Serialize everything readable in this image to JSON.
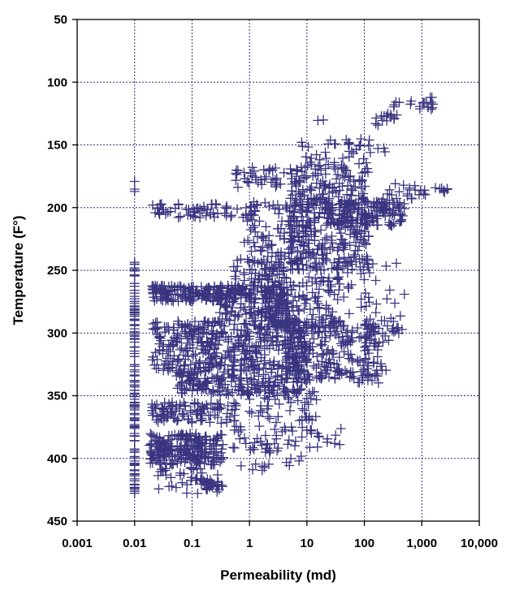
{
  "chart_data": {
    "type": "scatter",
    "title": "",
    "xlabel": "Permeability (md)",
    "ylabel": "Temperature (F°)",
    "x_scale": "log",
    "x_range": [
      0.001,
      10000
    ],
    "x_ticks": [
      0.001,
      0.01,
      0.1,
      1,
      10,
      100,
      1000,
      10000
    ],
    "x_tick_labels": [
      "0.001",
      "0.01",
      "0.1",
      "1",
      "10",
      "100",
      "1,000",
      "10,000"
    ],
    "y_range": [
      450,
      50
    ],
    "y_inverted": true,
    "y_ticks": [
      50,
      100,
      150,
      200,
      250,
      300,
      350,
      400,
      450
    ],
    "y_tick_labels": [
      "50",
      "100",
      "150",
      "200",
      "250",
      "300",
      "350",
      "400",
      "450"
    ],
    "grid": true,
    "legend": "none",
    "colors": {
      "marker": "#3a3580",
      "grid": "#2e2e7a",
      "axis": "#000000"
    },
    "marker": "plus",
    "series": [
      {
        "clusters": [
          {
            "x": [
              0.01,
              0.01
            ],
            "y": [
              243,
              428
            ],
            "n": 120
          },
          {
            "x": [
              0.01,
              0.01
            ],
            "y": [
              175,
              200
            ],
            "n": 3
          },
          {
            "x": [
              0.018,
              0.35
            ],
            "y": [
              380,
              405
            ],
            "n": 230
          },
          {
            "x": [
              0.02,
              0.3
            ],
            "y": [
              405,
              428
            ],
            "n": 45
          },
          {
            "x": [
              0.15,
              0.35
            ],
            "y": [
              418,
              425
            ],
            "n": 25
          },
          {
            "x": [
              0.02,
              0.6
            ],
            "y": [
              355,
              372
            ],
            "n": 110
          },
          {
            "x": [
              0.02,
              4
            ],
            "y": [
              262,
              275
            ],
            "n": 260
          },
          {
            "x": [
              0.5,
              4
            ],
            "y": [
              240,
              260
            ],
            "n": 55
          },
          {
            "x": [
              0.02,
              10
            ],
            "y": [
              290,
              330
            ],
            "n": 440
          },
          {
            "x": [
              0.05,
              8
            ],
            "y": [
              330,
              350
            ],
            "n": 190
          },
          {
            "x": [
              0.3,
              5
            ],
            "y": [
              275,
              290
            ],
            "n": 70
          },
          {
            "x": [
              1,
              40
            ],
            "y": [
              255,
              300
            ],
            "n": 160
          },
          {
            "x": [
              4,
              200
            ],
            "y": [
              290,
              340
            ],
            "n": 240
          },
          {
            "x": [
              0.02,
              1.5
            ],
            "y": [
              197,
              208
            ],
            "n": 70
          },
          {
            "x": [
              0.8,
              10
            ],
            "y": [
              195,
              245
            ],
            "n": 90
          },
          {
            "x": [
              5,
              120
            ],
            "y": [
              165,
              250
            ],
            "n": 360
          },
          {
            "x": [
              20,
              500
            ],
            "y": [
              195,
              215
            ],
            "n": 150
          },
          {
            "x": [
              0.5,
              8
            ],
            "y": [
              168,
              185
            ],
            "n": 45
          },
          {
            "x": [
              8,
              250
            ],
            "y": [
              145,
              170
            ],
            "n": 40
          },
          {
            "x": [
              1,
              15
            ],
            "y": [
              345,
              372
            ],
            "n": 45
          },
          {
            "x": [
              0.5,
              8
            ],
            "y": [
              372,
              410
            ],
            "n": 55
          },
          {
            "x": [
              8,
              40
            ],
            "y": [
              375,
              392
            ],
            "n": 18
          },
          {
            "x": [
              40,
              500
            ],
            "y": [
              240,
              300
            ],
            "n": 40
          },
          {
            "x": [
              200,
              1200
            ],
            "y": [
              180,
              195
            ],
            "n": 22
          },
          {
            "x": [
              1500,
              6500
            ],
            "y": [
              184,
              188
            ],
            "n": 8
          },
          {
            "x": [
              150,
              400
            ],
            "y": [
              125,
              135
            ],
            "n": 15
          },
          {
            "x": [
              900,
              1600
            ],
            "y": [
              112,
              122
            ],
            "n": 14
          },
          {
            "x": [
              300,
              700
            ],
            "y": [
              115,
              123
            ],
            "n": 6
          },
          {
            "x": [
              12,
              25
            ],
            "y": [
              128,
              132
            ],
            "n": 2
          },
          {
            "x": [
              100,
              400
            ],
            "y": [
              293,
              308
            ],
            "n": 18
          },
          {
            "x": [
              60,
              300
            ],
            "y": [
              320,
              330
            ],
            "n": 8
          }
        ]
      }
    ]
  }
}
